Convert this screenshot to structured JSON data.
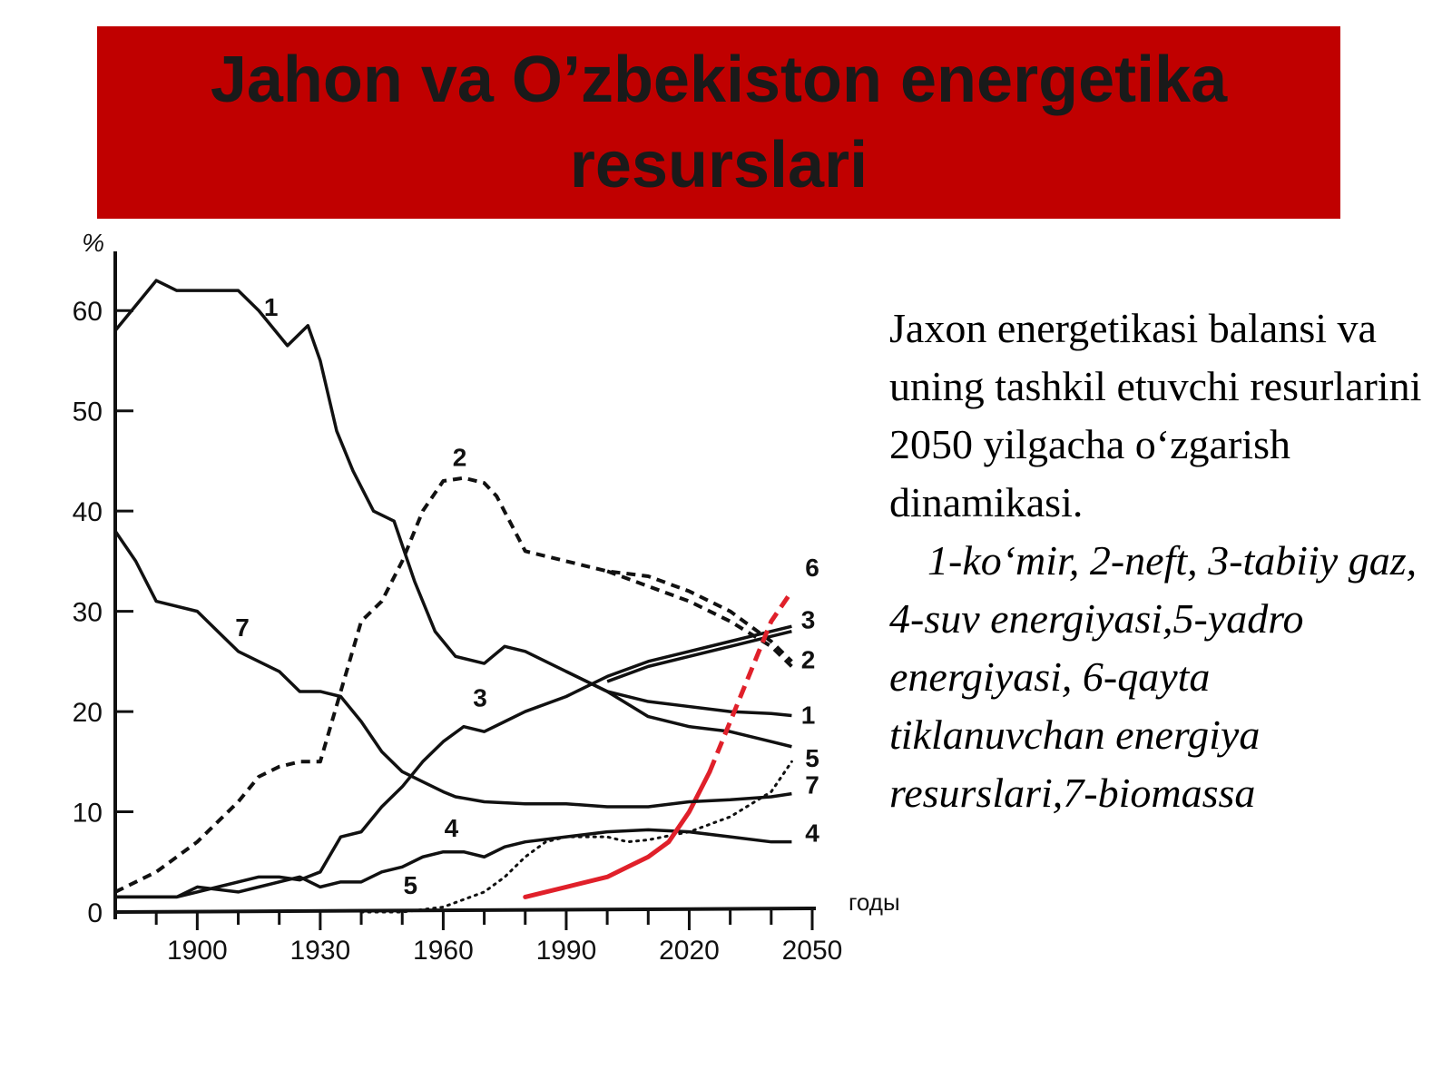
{
  "slide": {
    "title": "Jahon va O’zbekiston energetika resurslari",
    "description": "Jaxon energetikasi  balansi va uning tashkil etuvchi resurlarini  2050 yilgacha o‘zgarish  dinamikasi.",
    "legend_text": "1-ko‘mir, 2-neft, 3-tabiiy gaz, 4-suv energiyasi,5-yadro energiyasi, 6-qayta tiklanuvchan  energiya resurslari,7-biomassa",
    "colors": {
      "title_bg": "#c00000",
      "series_6": "#e0202a",
      "series_default": "#111111"
    }
  },
  "chart_data": {
    "type": "line",
    "ylabel": "%",
    "xlabel": "годы",
    "xlim": [
      1880,
      2050
    ],
    "ylim": [
      0,
      65
    ],
    "x_ticks": [
      1900,
      1930,
      1960,
      1990,
      2020,
      2050
    ],
    "y_ticks": [
      0,
      10,
      20,
      30,
      40,
      50,
      60
    ],
    "grid": false,
    "series": [
      {
        "name": "1",
        "style": "solid",
        "x": [
          1880,
          1884,
          1890,
          1895,
          1900,
          1910,
          1915,
          1922,
          1927,
          1930,
          1934,
          1938,
          1943,
          1948,
          1953,
          1958,
          1963,
          1970,
          1975,
          1980,
          1990,
          2000,
          2010,
          2020,
          2030,
          2040,
          2045
        ],
        "y": [
          58,
          60,
          63,
          62,
          62,
          62,
          60,
          56.5,
          58.5,
          55,
          48,
          44,
          40,
          39,
          33,
          28,
          25.5,
          24.8,
          26.5,
          26,
          24,
          22,
          21,
          20.5,
          20,
          19.8,
          19.6
        ]
      },
      {
        "name": "1",
        "style": "solid",
        "x": [
          1990,
          2000,
          2010,
          2020,
          2030,
          2040,
          2045
        ],
        "y": [
          24,
          22,
          19.5,
          18.5,
          18,
          17,
          16.5
        ]
      },
      {
        "name": "2",
        "style": "dashed",
        "x": [
          1880,
          1890,
          1900,
          1910,
          1915,
          1920,
          1925,
          1930,
          1935,
          1940,
          1945,
          1950,
          1955,
          1960,
          1965,
          1970,
          1973,
          1980,
          1985,
          1990,
          2000,
          2010,
          2020,
          2030,
          2040,
          2045
        ],
        "y": [
          2,
          4,
          7,
          11,
          13.5,
          14.5,
          15,
          15,
          22,
          29,
          31,
          35,
          40,
          43,
          43.3,
          42.8,
          41.5,
          36,
          35.5,
          35,
          34,
          33.5,
          32,
          30,
          27,
          25
        ]
      },
      {
        "name": "2",
        "style": "dashed",
        "x": [
          2000,
          2010,
          2020,
          2030,
          2040,
          2045
        ],
        "y": [
          34,
          32.5,
          31,
          29,
          26.5,
          24.5
        ]
      },
      {
        "name": "3",
        "style": "solid",
        "x": [
          1880,
          1895,
          1905,
          1915,
          1920,
          1925,
          1930,
          1935,
          1940,
          1945,
          1950,
          1955,
          1960,
          1965,
          1970,
          1975,
          1980,
          1990,
          2000,
          2010,
          2020,
          2030,
          2040,
          2045
        ],
        "y": [
          1.5,
          1.5,
          2.5,
          3.5,
          3.5,
          3.2,
          4,
          7.5,
          8,
          10.5,
          12.5,
          15,
          17,
          18.5,
          18,
          19,
          20,
          21.5,
          23.5,
          25,
          26,
          27,
          28,
          28.5
        ]
      },
      {
        "name": "3",
        "style": "solid",
        "x": [
          2000,
          2010,
          2020,
          2030,
          2040,
          2045
        ],
        "y": [
          23,
          24.5,
          25.5,
          26.5,
          27.5,
          28
        ]
      },
      {
        "name": "4",
        "style": "solid",
        "x": [
          1880,
          1895,
          1900,
          1910,
          1915,
          1920,
          1925,
          1930,
          1935,
          1940,
          1945,
          1950,
          1955,
          1960,
          1965,
          1970,
          1975,
          1980,
          1990,
          2000,
          2010,
          2020,
          2030,
          2040,
          2045
        ],
        "y": [
          1.5,
          1.5,
          2.5,
          2,
          2.5,
          3,
          3.5,
          2.5,
          3,
          3,
          4,
          4.5,
          5.5,
          6,
          6,
          5.5,
          6.5,
          7,
          7.5,
          8,
          8.2,
          8,
          7.5,
          7,
          7
        ]
      },
      {
        "name": "5",
        "style": "dotted",
        "x": [
          1940,
          1950,
          1960,
          1970,
          1975,
          1980,
          1985,
          1990,
          2000,
          2005,
          2010,
          2020,
          2030,
          2040,
          2045
        ],
        "y": [
          0,
          0,
          0.5,
          2,
          3.5,
          5.5,
          7,
          7.5,
          7.5,
          7,
          7.2,
          8,
          9.5,
          12,
          15
        ]
      },
      {
        "name": "6",
        "style": "solid-then-dashed",
        "x": [
          1980,
          1990,
          2000,
          2005,
          2010,
          2015,
          2020,
          2025,
          2030,
          2035,
          2040,
          2045
        ],
        "y": [
          1.5,
          2.5,
          3.5,
          4.5,
          5.5,
          7,
          10,
          14,
          19,
          24,
          29,
          32
        ]
      },
      {
        "name": "7",
        "style": "solid",
        "x": [
          1880,
          1885,
          1890,
          1900,
          1905,
          1910,
          1920,
          1925,
          1930,
          1935,
          1940,
          1945,
          1950,
          1955,
          1960,
          1963,
          1970,
          1980,
          1990,
          2000,
          2010,
          2020,
          2030,
          2040,
          2045
        ],
        "y": [
          38,
          35,
          31,
          30,
          28,
          26,
          24,
          22,
          22,
          21.5,
          19,
          16,
          14,
          13,
          12,
          11.5,
          11,
          10.8,
          10.8,
          10.5,
          10.5,
          11,
          11.2,
          11.5,
          11.8
        ]
      }
    ],
    "series_labels": [
      {
        "text": "1",
        "x": 1918,
        "y": 59.5
      },
      {
        "text": "2",
        "x": 1964,
        "y": 44.5
      },
      {
        "text": "3",
        "x": 1969,
        "y": 20.5
      },
      {
        "text": "4",
        "x": 1962,
        "y": 7.5
      },
      {
        "text": "5",
        "x": 1952,
        "y": 1.8
      },
      {
        "text": "7",
        "x": 1911,
        "y": 27.5
      },
      {
        "text": "6",
        "x": 2050,
        "y": 33.5
      },
      {
        "text": "3",
        "x": 2049,
        "y": 28.3
      },
      {
        "text": "2",
        "x": 2049,
        "y": 24.3
      },
      {
        "text": "1",
        "x": 2049,
        "y": 18.8
      },
      {
        "text": "5",
        "x": 2050,
        "y": 14.5
      },
      {
        "text": "7",
        "x": 2050,
        "y": 11.8
      },
      {
        "text": "4",
        "x": 2050,
        "y": 7.0
      }
    ]
  }
}
